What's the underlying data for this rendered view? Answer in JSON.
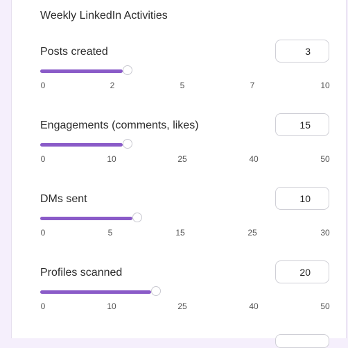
{
  "section": {
    "title": "Weekly LinkedIn Activities"
  },
  "accent_color": "#8a5bc8",
  "rows": [
    {
      "label": "Posts created",
      "value": "3",
      "level": 0.3,
      "ticks": [
        "0",
        "2",
        "5",
        "7",
        "10"
      ]
    },
    {
      "label": "Engagements (comments, likes)",
      "value": "15",
      "level": 0.3,
      "ticks": [
        "0",
        "10",
        "25",
        "40",
        "50"
      ]
    },
    {
      "label": "DMs sent",
      "value": "10",
      "level": 0.333,
      "ticks": [
        "0",
        "5",
        "15",
        "25",
        "30"
      ]
    },
    {
      "label": "Profiles scanned",
      "value": "20",
      "level": 0.4,
      "ticks": [
        "0",
        "10",
        "25",
        "40",
        "50"
      ]
    }
  ]
}
